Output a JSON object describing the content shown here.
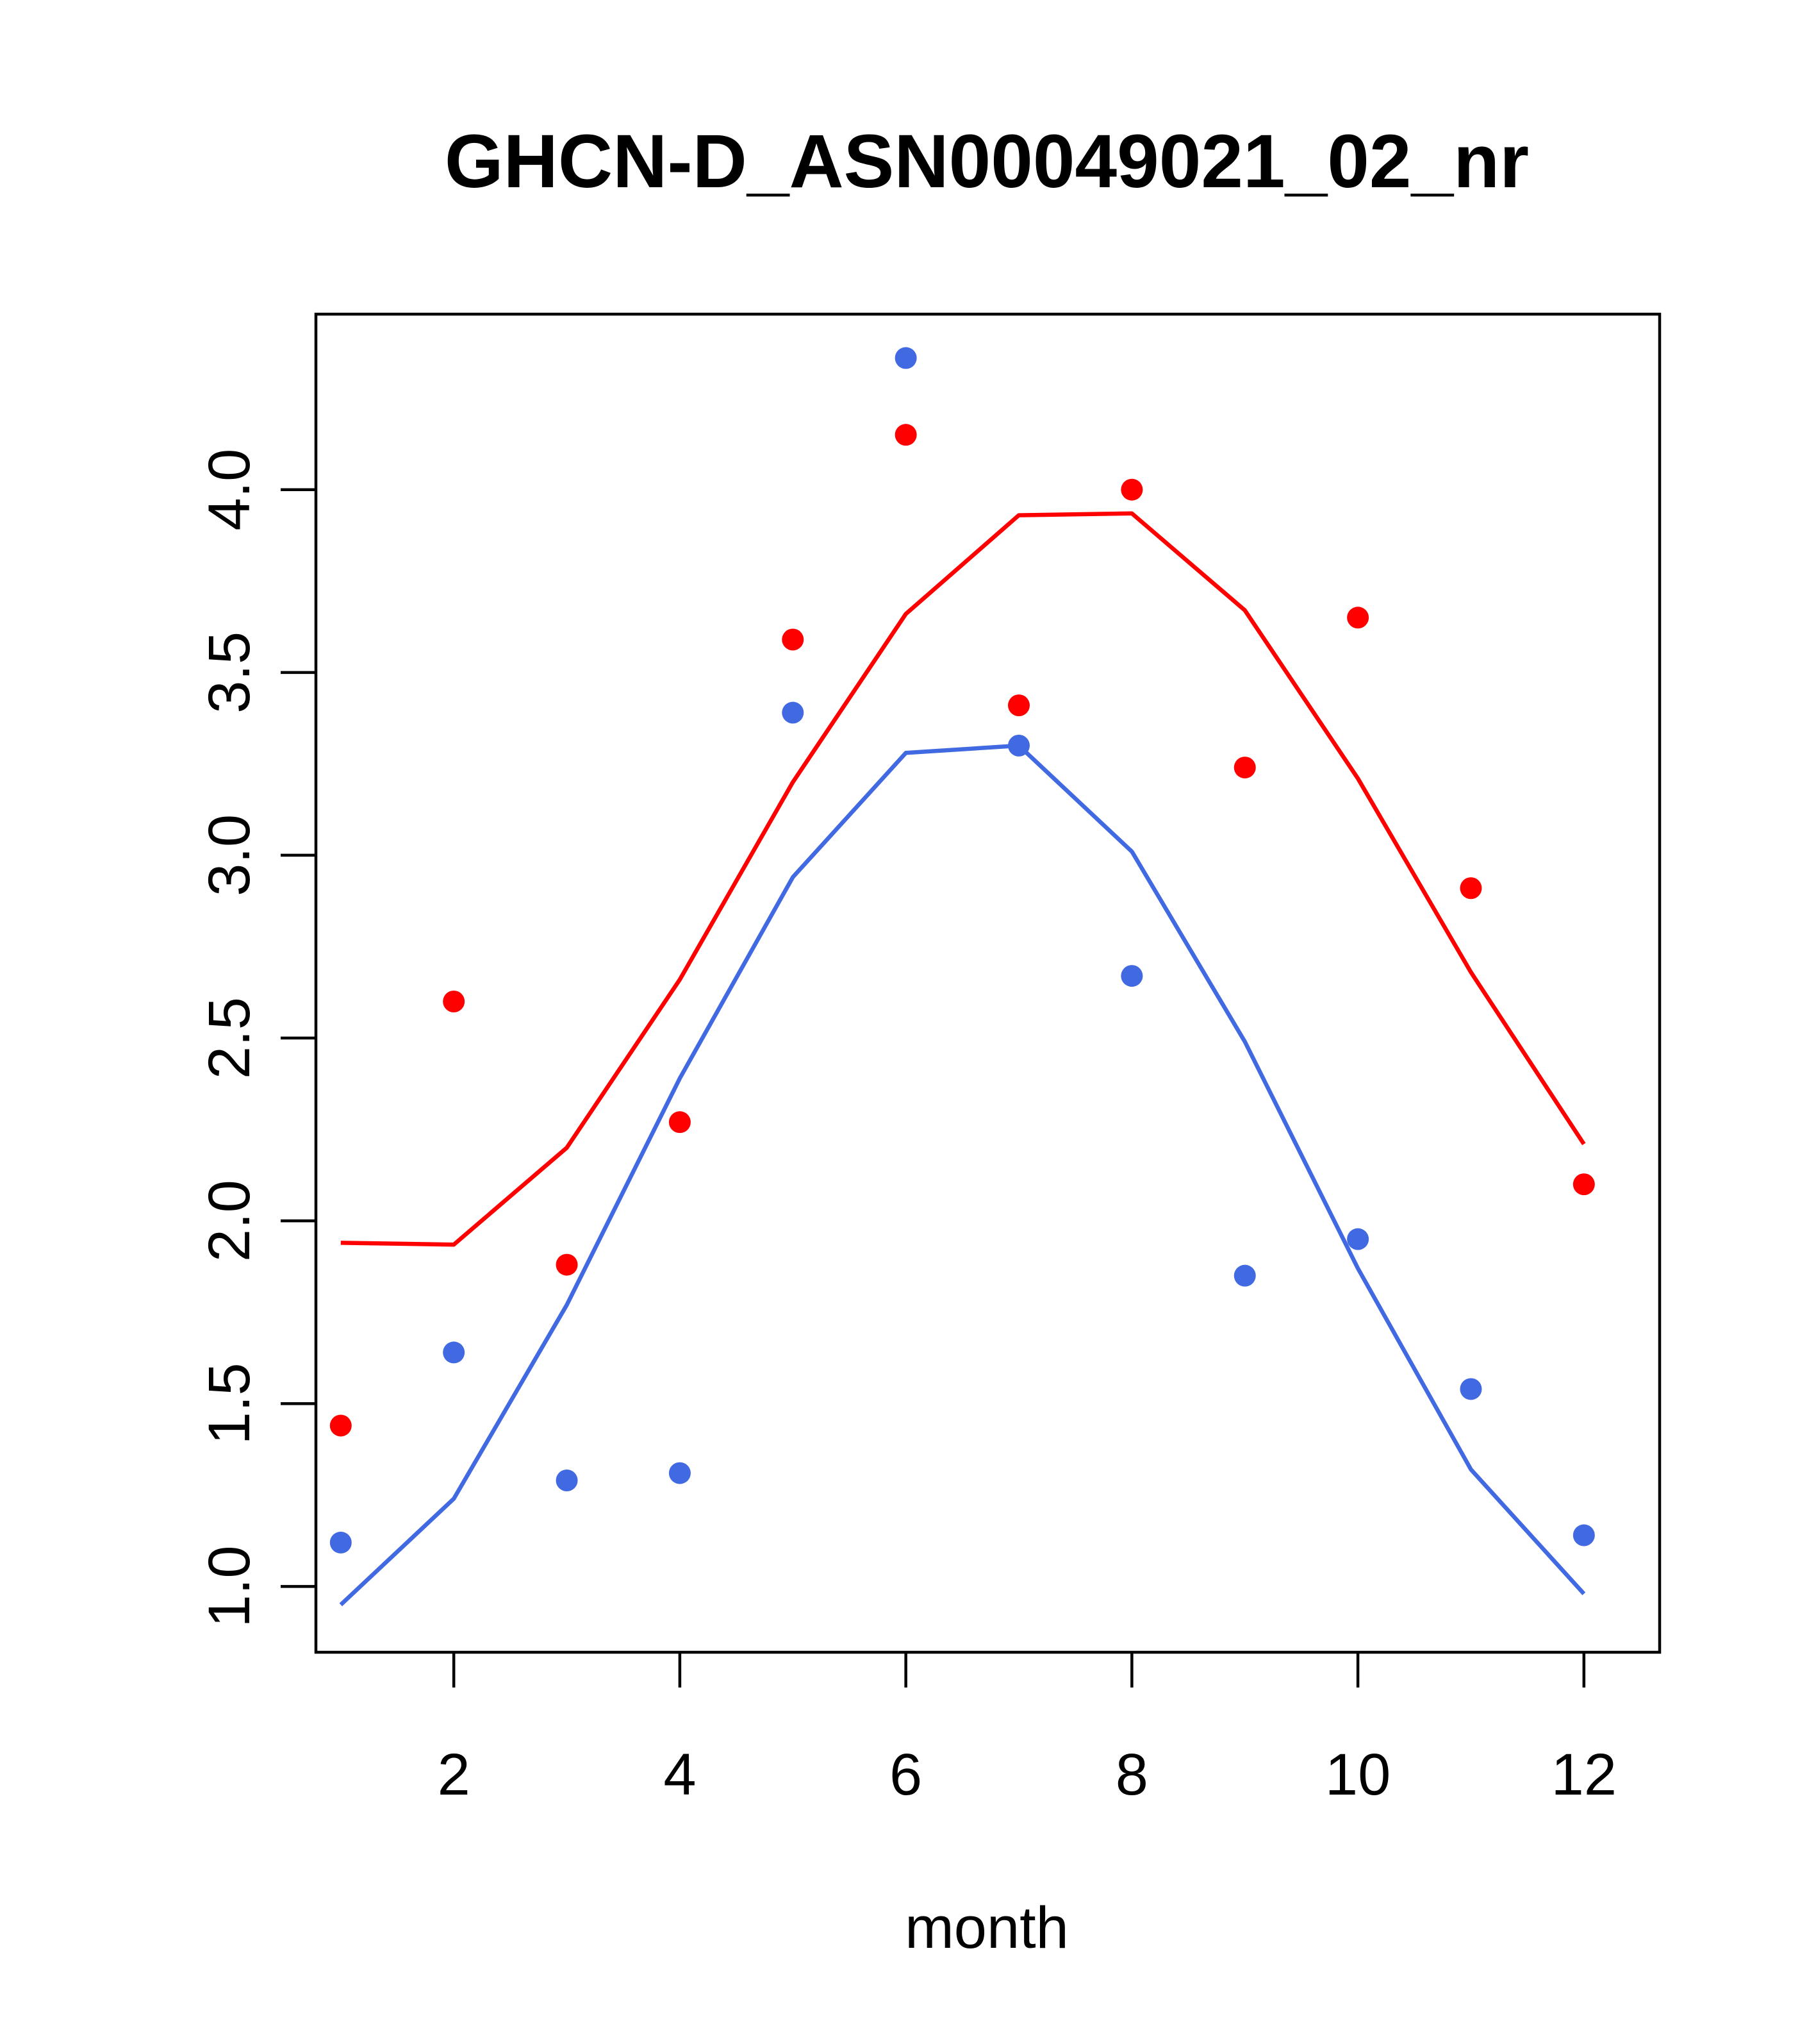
{
  "chart_data": {
    "type": "scatter",
    "title": "GHCN-D_ASN00049021_02_nr",
    "xlabel": "month",
    "ylabel": "",
    "xlim": [
      0.78,
      12.67
    ],
    "ylim": [
      0.82,
      4.48
    ],
    "x_ticks": [
      2,
      4,
      6,
      8,
      10,
      12
    ],
    "x_tick_labels": [
      "2",
      "4",
      "6",
      "8",
      "10",
      "12"
    ],
    "y_ticks": [
      1.0,
      1.5,
      2.0,
      2.5,
      3.0,
      3.5,
      4.0
    ],
    "y_tick_labels": [
      "1.0",
      "1.5",
      "2.0",
      "2.5",
      "3.0",
      "3.5",
      "4.0"
    ],
    "grid": false,
    "legend": "none",
    "x": [
      1,
      2,
      3,
      4,
      5,
      6,
      7,
      8,
      9,
      10,
      11,
      12
    ],
    "series": [
      {
        "color": "#ff0000",
        "points": [
          1.44,
          2.6,
          1.88,
          2.27,
          3.59,
          4.15,
          3.41,
          4.0,
          3.24,
          3.65,
          2.91,
          2.1
        ],
        "line": [
          1.94,
          1.935,
          2.2,
          2.66,
          3.2,
          3.66,
          3.93,
          3.935,
          3.67,
          3.21,
          2.68,
          2.21
        ]
      },
      {
        "color": "#4169e1",
        "points": [
          1.12,
          1.64,
          1.29,
          1.31,
          3.39,
          4.36,
          3.3,
          2.67,
          1.85,
          1.95,
          1.54,
          1.14
        ],
        "line": [
          0.95,
          1.24,
          1.77,
          2.39,
          2.94,
          3.28,
          3.3,
          3.01,
          2.49,
          1.87,
          1.32,
          0.98
        ]
      }
    ]
  }
}
